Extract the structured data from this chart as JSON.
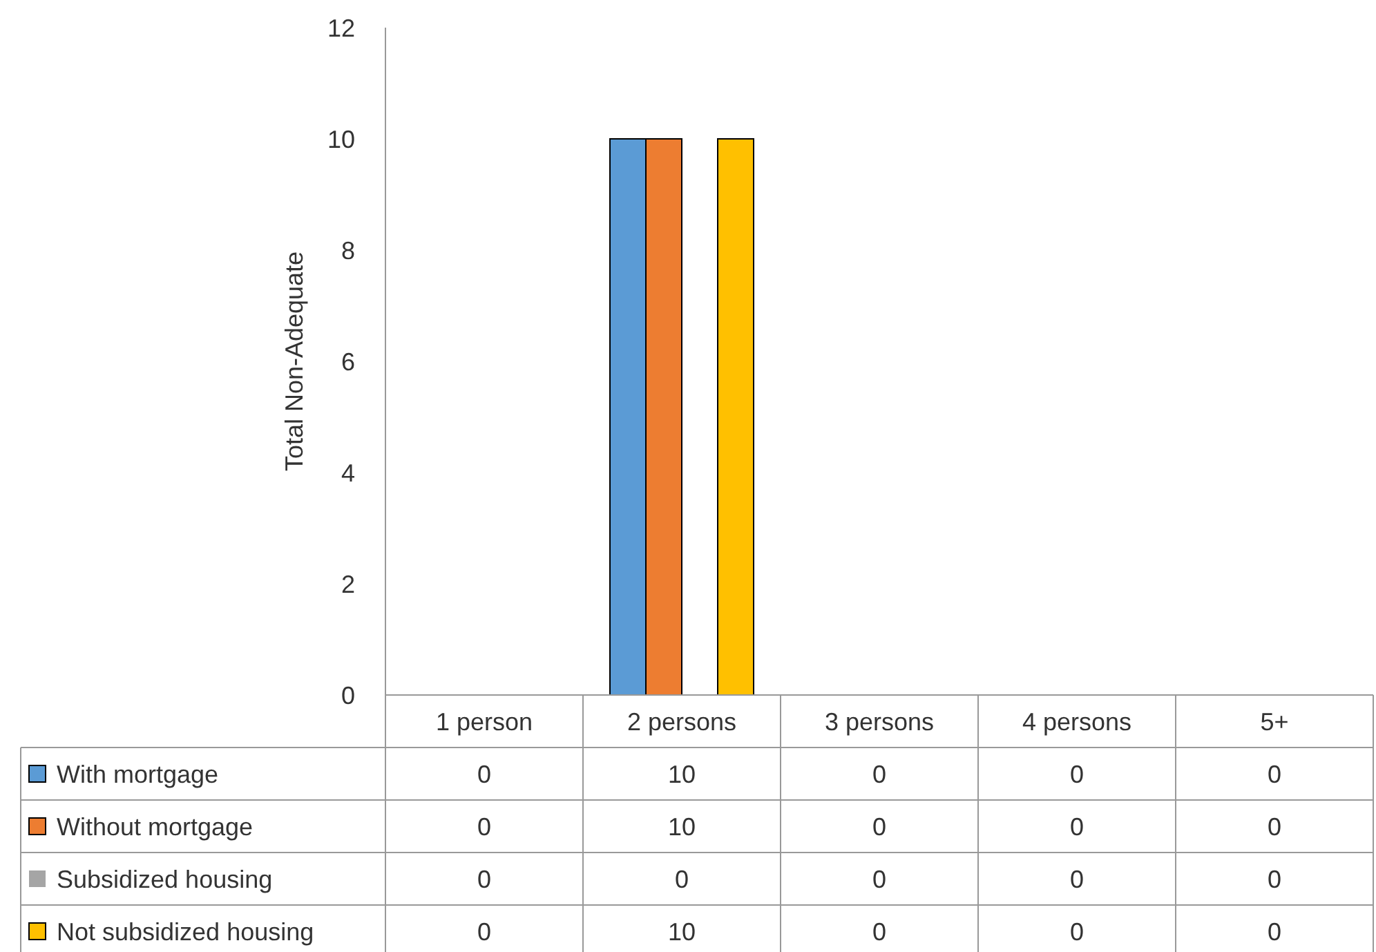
{
  "chart_data": {
    "type": "bar",
    "ylabel": "Total Non-Adequate",
    "categories": [
      "1 person",
      "2 persons",
      "3 persons",
      "4 persons",
      "5+"
    ],
    "series": [
      {
        "name": "With mortgage",
        "color": "#5b9bd5",
        "values": [
          0,
          10,
          0,
          0,
          0
        ]
      },
      {
        "name": "Without mortgage",
        "color": "#ed7d31",
        "values": [
          0,
          10,
          0,
          0,
          0
        ]
      },
      {
        "name": "Subsidized housing",
        "color": "#a5a5a5",
        "values": [
          0,
          0,
          0,
          0,
          0
        ]
      },
      {
        "name": "Not subsidized housing",
        "color": "#ffc000",
        "values": [
          0,
          10,
          0,
          0,
          0
        ]
      }
    ],
    "ylim": [
      0,
      12
    ],
    "yticks": [
      0,
      2,
      4,
      6,
      8,
      10,
      12
    ],
    "grid": false,
    "legend": "bottom",
    "data_labels": true
  }
}
